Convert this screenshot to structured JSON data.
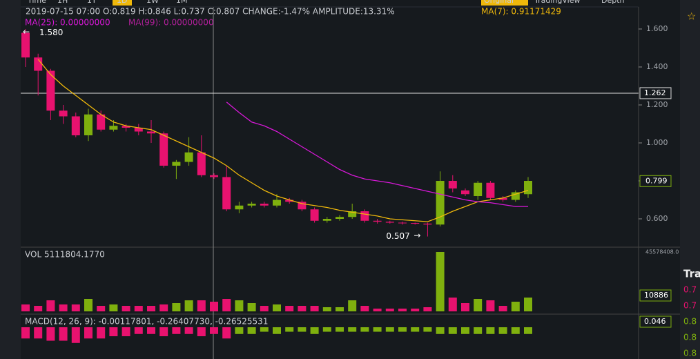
{
  "toolbar": {
    "intervals": [
      "Time",
      "1H",
      "1T",
      "1D",
      "1W",
      "1M"
    ],
    "views": [
      "Original",
      "TradingView",
      "Depth"
    ]
  },
  "info": {
    "ohlc": "2019-07-15 07:00  O:0.819 H:0.846 L:0.737 C:0.807 CHANGE:-1.47% AMPLITUDE:13.31%",
    "ma7": "MA(7): 0.91171429",
    "ma25": "MA(25): 0.00000000",
    "ma99": "MA(99): 0.00000000"
  },
  "side": {
    "title": "Trad",
    "prices": [
      "0.7",
      "0.7",
      "0.8",
      "0.8",
      "0.8"
    ]
  },
  "chart_data": [
    {
      "type": "candlestick",
      "name": "price",
      "up_color": "#7fb00e",
      "down_color": "#e8126f",
      "open": [
        1.58,
        1.45,
        1.38,
        1.17,
        1.14,
        1.04,
        1.15,
        1.07,
        1.09,
        1.08,
        1.06,
        1.05,
        0.88,
        0.9,
        0.95,
        0.83,
        0.82,
        0.65,
        0.67,
        0.68,
        0.67,
        0.7,
        0.69,
        0.65,
        0.59,
        0.6,
        0.61,
        0.64,
        0.59,
        0.585,
        0.58,
        0.578,
        0.575,
        0.57,
        0.8,
        0.75,
        0.72,
        0.79,
        0.71,
        0.7,
        0.73
      ],
      "high": [
        1.6,
        1.47,
        1.39,
        1.2,
        1.16,
        1.18,
        1.17,
        1.12,
        1.1,
        1.1,
        1.12,
        1.06,
        0.91,
        1.03,
        1.04,
        0.84,
        0.88,
        0.69,
        0.69,
        0.69,
        0.73,
        0.71,
        0.7,
        0.66,
        0.61,
        0.62,
        0.68,
        0.65,
        0.6,
        0.59,
        0.585,
        0.58,
        0.58,
        0.85,
        0.83,
        0.76,
        0.8,
        0.8,
        0.72,
        0.75,
        0.82
      ],
      "low": [
        1.4,
        1.25,
        1.12,
        1.1,
        1.03,
        1.01,
        1.06,
        1.06,
        1.06,
        1.04,
        1.0,
        0.87,
        0.81,
        0.88,
        0.82,
        0.81,
        0.64,
        0.63,
        0.66,
        0.66,
        0.66,
        0.68,
        0.64,
        0.58,
        0.58,
        0.59,
        0.6,
        0.58,
        0.575,
        0.575,
        0.57,
        0.57,
        0.507,
        0.56,
        0.74,
        0.72,
        0.7,
        0.7,
        0.69,
        0.69,
        0.71
      ],
      "close": [
        1.45,
        1.38,
        1.17,
        1.14,
        1.04,
        1.15,
        1.07,
        1.09,
        1.08,
        1.06,
        1.05,
        0.88,
        0.9,
        0.95,
        0.83,
        0.82,
        0.65,
        0.67,
        0.68,
        0.67,
        0.7,
        0.69,
        0.65,
        0.59,
        0.6,
        0.61,
        0.64,
        0.59,
        0.585,
        0.58,
        0.578,
        0.575,
        0.57,
        0.8,
        0.76,
        0.73,
        0.79,
        0.71,
        0.7,
        0.74,
        0.8
      ],
      "series": [
        {
          "name": "MA(7)",
          "color": "#f0b90b",
          "values": [
            null,
            1.44,
            1.36,
            1.3,
            1.25,
            1.2,
            1.15,
            1.11,
            1.09,
            1.08,
            1.07,
            1.04,
            1.01,
            0.98,
            0.95,
            0.92,
            0.88,
            0.83,
            0.79,
            0.75,
            0.72,
            0.7,
            0.68,
            0.67,
            0.66,
            0.645,
            0.635,
            0.625,
            0.615,
            0.6,
            0.595,
            0.59,
            0.585,
            0.61,
            0.64,
            0.665,
            0.69,
            0.7,
            0.71,
            0.73,
            0.75
          ]
        },
        {
          "name": "MA(25)",
          "color": "#d918d9",
          "values": [
            null,
            null,
            null,
            null,
            null,
            null,
            null,
            null,
            null,
            null,
            null,
            null,
            null,
            null,
            null,
            null,
            1.215,
            1.16,
            1.11,
            1.09,
            1.06,
            1.02,
            0.98,
            0.94,
            0.9,
            0.86,
            0.83,
            0.81,
            0.8,
            0.79,
            0.775,
            0.76,
            0.745,
            0.73,
            0.715,
            0.7,
            0.69,
            0.685,
            0.675,
            0.665,
            0.665
          ]
        }
      ],
      "ylim": [
        0.48,
        1.67
      ],
      "yticks": [
        {
          "value": 0.6,
          "label": "0.600"
        },
        {
          "value": 0.8,
          "label": "0.800"
        },
        {
          "value": 1.0,
          "label": "1.000"
        },
        {
          "value": 1.2,
          "label": "1.200"
        },
        {
          "value": 1.4,
          "label": "1.400"
        },
        {
          "value": 1.6,
          "label": "1.600"
        }
      ],
      "crosshair": {
        "value": 1.262,
        "label": "1.262"
      },
      "last": {
        "value": 0.799,
        "label": "0.799"
      },
      "annotations": [
        {
          "value": 1.58,
          "label": "1.580"
        },
        {
          "value": 0.507,
          "label": "0.507"
        }
      ]
    },
    {
      "type": "bar",
      "name": "VOL",
      "title": "VOL 5111804.1770",
      "last_label": "10886",
      "values": [
        5300000,
        4240000,
        8480000,
        5300000,
        5300000,
        9540000,
        4240000,
        5300000,
        4240000,
        4240000,
        4240000,
        5300000,
        6360000,
        8480000,
        8480000,
        7420000,
        9540000,
        8480000,
        6360000,
        4240000,
        5300000,
        4240000,
        4240000,
        4240000,
        3180000,
        3180000,
        8480000,
        4240000,
        2120000,
        2120000,
        2120000,
        2120000,
        3180000,
        45578408,
        10600000,
        6360000,
        9540000,
        8480000,
        4240000,
        7420000,
        10600000
      ],
      "ylim": [
        0,
        45578408
      ],
      "yticks": [
        {
          "value": 45578408,
          "label": "45578408.0"
        }
      ]
    },
    {
      "type": "bar",
      "name": "MACD",
      "title": "MACD(12, 26, 9): -0.00117801, -0.26407730, -0.26525531",
      "last_label": "0.046",
      "values": [
        -0.05,
        -0.05,
        -0.06,
        -0.06,
        -0.07,
        -0.05,
        -0.05,
        -0.04,
        -0.04,
        -0.03,
        -0.03,
        -0.04,
        -0.03,
        -0.03,
        -0.04,
        -0.03,
        -0.05,
        -0.03,
        -0.03,
        -0.02,
        -0.03,
        -0.02,
        -0.02,
        -0.03,
        -0.02,
        -0.02,
        -0.02,
        -0.02,
        -0.02,
        -0.02,
        -0.02,
        -0.02,
        -0.02,
        -0.03,
        -0.03,
        -0.03,
        -0.03,
        -0.03,
        -0.03,
        -0.03,
        -0.03
      ],
      "colors": [
        "#e8126f",
        "#e8126f",
        "#e8126f",
        "#e8126f",
        "#e8126f",
        "#e8126f",
        "#e8126f",
        "#e8126f",
        "#e8126f",
        "#e8126f",
        "#e8126f",
        "#e8126f",
        "#e8126f",
        "#e8126f",
        "#e8126f",
        "#e8126f",
        "#e8126f",
        "#7fb00e",
        "#7fb00e",
        "#7fb00e",
        "#7fb00e",
        "#7fb00e",
        "#7fb00e",
        "#7fb00e",
        "#7fb00e",
        "#7fb00e",
        "#7fb00e",
        "#7fb00e",
        "#7fb00e",
        "#7fb00e",
        "#7fb00e",
        "#7fb00e",
        "#7fb00e",
        "#7fb00e",
        "#7fb00e",
        "#7fb00e",
        "#7fb00e",
        "#7fb00e",
        "#7fb00e",
        "#7fb00e",
        "#7fb00e"
      ],
      "ylim": [
        -0.12,
        0.046
      ]
    }
  ]
}
